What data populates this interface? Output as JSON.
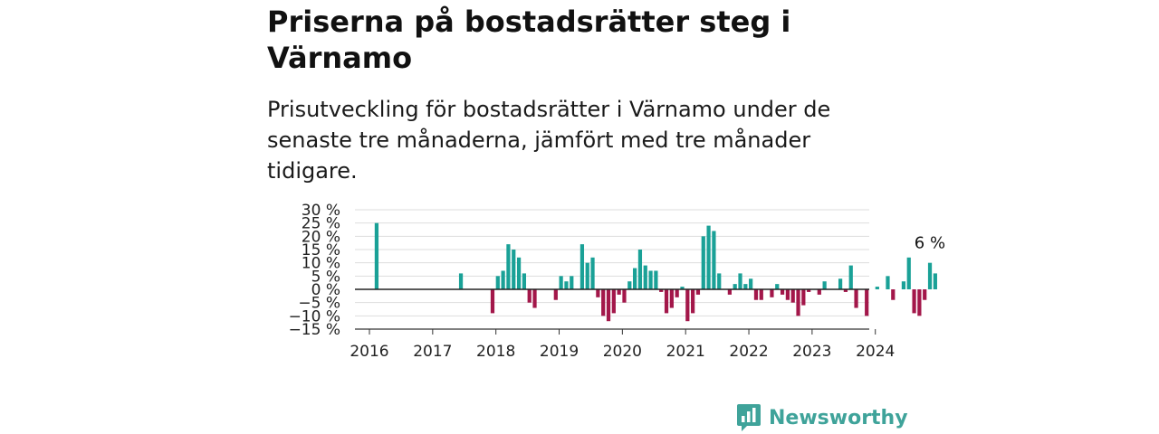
{
  "header": {
    "title": "Priserna på bostadsrätter steg i Värnamo",
    "subtitle": "Prisutveckling för bostadsrätter i Värnamo under de senaste tre månaderna, jämfört med tre månader tidigare."
  },
  "brand": {
    "name": "Newsworthy",
    "icon": "newsworthy-logo-icon"
  },
  "colors": {
    "positive": "#1aa197",
    "negative": "#a3174a",
    "grid": "#dddddd",
    "axis": "#333333"
  },
  "chart_data": {
    "type": "bar",
    "x_unit": "month",
    "ylim": [
      -15,
      30
    ],
    "yticks": [
      -15,
      -10,
      -5,
      0,
      5,
      10,
      15,
      20,
      25,
      30
    ],
    "ytick_labels": [
      "−15 %",
      "−10 %",
      "−5 %",
      "0 %",
      "5 %",
      "10 %",
      "15 %",
      "20 %",
      "25 %",
      "30 %"
    ],
    "xtick_labels": [
      "2016",
      "2017",
      "2018",
      "2019",
      "2020",
      "2021",
      "2022",
      "2023",
      "2024"
    ],
    "grid": true,
    "annotation": {
      "text": "6 %",
      "date": "2024-11"
    },
    "points": [
      {
        "date": "2016-02",
        "value": 25
      },
      {
        "date": "2017-06",
        "value": 6
      },
      {
        "date": "2017-12",
        "value": -9
      },
      {
        "date": "2018-01",
        "value": 5
      },
      {
        "date": "2018-02",
        "value": 7
      },
      {
        "date": "2018-03",
        "value": 17
      },
      {
        "date": "2018-04",
        "value": 15
      },
      {
        "date": "2018-05",
        "value": 12
      },
      {
        "date": "2018-06",
        "value": 6
      },
      {
        "date": "2018-07",
        "value": -5
      },
      {
        "date": "2018-08",
        "value": -7
      },
      {
        "date": "2018-12",
        "value": -4
      },
      {
        "date": "2019-01",
        "value": 5
      },
      {
        "date": "2019-02",
        "value": 3
      },
      {
        "date": "2019-03",
        "value": 5
      },
      {
        "date": "2019-05",
        "value": 17
      },
      {
        "date": "2019-06",
        "value": 10
      },
      {
        "date": "2019-07",
        "value": 12
      },
      {
        "date": "2019-08",
        "value": -3
      },
      {
        "date": "2019-09",
        "value": -10
      },
      {
        "date": "2019-10",
        "value": -12
      },
      {
        "date": "2019-11",
        "value": -9
      },
      {
        "date": "2019-12",
        "value": -2
      },
      {
        "date": "2020-01",
        "value": -5
      },
      {
        "date": "2020-02",
        "value": 3
      },
      {
        "date": "2020-03",
        "value": 8
      },
      {
        "date": "2020-04",
        "value": 15
      },
      {
        "date": "2020-05",
        "value": 9
      },
      {
        "date": "2020-06",
        "value": 7
      },
      {
        "date": "2020-07",
        "value": 7
      },
      {
        "date": "2020-08",
        "value": -1
      },
      {
        "date": "2020-09",
        "value": -9
      },
      {
        "date": "2020-10",
        "value": -7
      },
      {
        "date": "2020-11",
        "value": -3
      },
      {
        "date": "2020-12",
        "value": 1
      },
      {
        "date": "2021-01",
        "value": -12
      },
      {
        "date": "2021-02",
        "value": -9
      },
      {
        "date": "2021-03",
        "value": -2
      },
      {
        "date": "2021-04",
        "value": 20
      },
      {
        "date": "2021-05",
        "value": 24
      },
      {
        "date": "2021-06",
        "value": 22
      },
      {
        "date": "2021-07",
        "value": 6
      },
      {
        "date": "2021-09",
        "value": -2
      },
      {
        "date": "2021-10",
        "value": 2
      },
      {
        "date": "2021-11",
        "value": 6
      },
      {
        "date": "2021-12",
        "value": 2
      },
      {
        "date": "2022-01",
        "value": 4
      },
      {
        "date": "2022-02",
        "value": -4
      },
      {
        "date": "2022-03",
        "value": -4
      },
      {
        "date": "2022-05",
        "value": -3
      },
      {
        "date": "2022-06",
        "value": 2
      },
      {
        "date": "2022-07",
        "value": -2
      },
      {
        "date": "2022-08",
        "value": -4
      },
      {
        "date": "2022-09",
        "value": -5
      },
      {
        "date": "2022-10",
        "value": -10
      },
      {
        "date": "2022-11",
        "value": -6
      },
      {
        "date": "2022-12",
        "value": -1
      },
      {
        "date": "2023-02",
        "value": -2
      },
      {
        "date": "2023-03",
        "value": 3
      },
      {
        "date": "2023-06",
        "value": 4
      },
      {
        "date": "2023-07",
        "value": -1
      },
      {
        "date": "2023-08",
        "value": 9
      },
      {
        "date": "2023-09",
        "value": -7
      },
      {
        "date": "2023-11",
        "value": -10
      },
      {
        "date": "2024-01",
        "value": 1
      },
      {
        "date": "2024-03",
        "value": 5
      },
      {
        "date": "2024-04",
        "value": -4
      },
      {
        "date": "2024-06",
        "value": 3
      },
      {
        "date": "2024-07",
        "value": 12
      },
      {
        "date": "2024-08",
        "value": -9
      },
      {
        "date": "2024-09",
        "value": -10
      },
      {
        "date": "2024-10",
        "value": -4
      },
      {
        "date": "2024-11",
        "value": 10
      },
      {
        "date": "2024-12",
        "value": 6
      }
    ]
  }
}
